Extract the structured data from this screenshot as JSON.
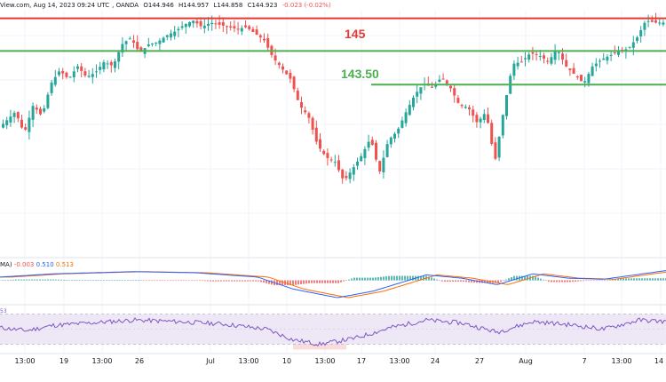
{
  "header": {
    "source": "View.com, Aug 14, 2023 09:24 UTC",
    "broker": ", OANDA",
    "open": "O144.946",
    "high": "H144.957",
    "low": "L144.858",
    "close": "C144.923",
    "change": "-0.023 (-0.02%)"
  },
  "macd_header": {
    "name": "MA)",
    "hist": "-0.003",
    "macd": "0.510",
    "signal": "0.513"
  },
  "rsi_header": {
    "name": "53"
  },
  "colors": {
    "up": "#26a69a",
    "down": "#ef5350",
    "resistance": "#e53935",
    "support": "#4caf50",
    "macd_line": "#2962ff",
    "signal_line": "#ff6d00",
    "rsi_line": "#7e57c2",
    "rsi_band": "#ede7f6"
  },
  "chart_data": {
    "type": "candlestick",
    "levels": [
      {
        "label": "145",
        "value": 145.0
      },
      {
        "label": "143.50",
        "value": 143.5
      },
      {
        "label": "",
        "value": 141.95
      }
    ],
    "ylim": [
      134.0,
      145.35
    ],
    "xticks": [
      "13:00",
      "19",
      "13:00",
      "26",
      "Jul",
      "13:00",
      "10",
      "13:00",
      "17",
      "13:00",
      "24",
      "27",
      "Aug",
      "7",
      "13:00",
      "14"
    ],
    "price_path": [
      [
        0,
        139.9
      ],
      [
        10,
        140.3
      ],
      [
        20,
        140.7
      ],
      [
        30,
        139.7
      ],
      [
        40,
        141.0
      ],
      [
        50,
        140.5
      ],
      [
        60,
        142.0
      ],
      [
        70,
        142.6
      ],
      [
        80,
        142.2
      ],
      [
        90,
        142.8
      ],
      [
        100,
        142.3
      ],
      [
        110,
        142.5
      ],
      [
        120,
        143.0
      ],
      [
        130,
        142.8
      ],
      [
        140,
        143.8
      ],
      [
        150,
        144.1
      ],
      [
        160,
        143.4
      ],
      [
        170,
        143.8
      ],
      [
        180,
        143.9
      ],
      [
        190,
        144.2
      ],
      [
        200,
        144.4
      ],
      [
        210,
        144.7
      ],
      [
        220,
        144.9
      ],
      [
        230,
        144.6
      ],
      [
        240,
        144.8
      ],
      [
        250,
        144.7
      ],
      [
        260,
        144.6
      ],
      [
        270,
        144.5
      ],
      [
        280,
        144.6
      ],
      [
        290,
        144.3
      ],
      [
        300,
        144.0
      ],
      [
        310,
        143.2
      ],
      [
        320,
        142.7
      ],
      [
        330,
        142.2
      ],
      [
        340,
        141.0
      ],
      [
        350,
        140.5
      ],
      [
        360,
        139.2
      ],
      [
        370,
        138.6
      ],
      [
        380,
        138.4
      ],
      [
        390,
        137.5
      ],
      [
        400,
        138.1
      ],
      [
        410,
        138.7
      ],
      [
        420,
        139.5
      ],
      [
        430,
        137.9
      ],
      [
        440,
        139.4
      ],
      [
        450,
        139.8
      ],
      [
        460,
        140.7
      ],
      [
        470,
        141.5
      ],
      [
        480,
        142.0
      ],
      [
        490,
        141.8
      ],
      [
        500,
        142.3
      ],
      [
        510,
        141.8
      ],
      [
        520,
        141.0
      ],
      [
        530,
        140.9
      ],
      [
        540,
        140.2
      ],
      [
        550,
        140.7
      ],
      [
        560,
        138.4
      ],
      [
        570,
        140.8
      ],
      [
        580,
        142.9
      ],
      [
        590,
        143.0
      ],
      [
        600,
        143.4
      ],
      [
        610,
        143.3
      ],
      [
        620,
        143.0
      ],
      [
        630,
        143.6
      ],
      [
        640,
        142.8
      ],
      [
        650,
        142.4
      ],
      [
        660,
        142.0
      ],
      [
        670,
        142.8
      ],
      [
        680,
        143.1
      ],
      [
        690,
        143.3
      ],
      [
        700,
        143.5
      ],
      [
        710,
        143.6
      ],
      [
        720,
        144.1
      ],
      [
        730,
        144.9
      ],
      [
        740,
        144.8
      ],
      [
        750,
        144.8
      ]
    ],
    "macd_path": [
      [
        0,
        0.15
      ],
      [
        60,
        0.3
      ],
      [
        150,
        0.4
      ],
      [
        220,
        0.35
      ],
      [
        290,
        0.15
      ],
      [
        330,
        -0.4
      ],
      [
        380,
        -0.8
      ],
      [
        420,
        -0.5
      ],
      [
        480,
        0.25
      ],
      [
        520,
        0.1
      ],
      [
        560,
        -0.2
      ],
      [
        600,
        0.3
      ],
      [
        640,
        0.1
      ],
      [
        680,
        0.05
      ],
      [
        750,
        0.45
      ]
    ],
    "rsi_path": [
      [
        0,
        52
      ],
      [
        30,
        48
      ],
      [
        60,
        55
      ],
      [
        100,
        58
      ],
      [
        150,
        62
      ],
      [
        200,
        60
      ],
      [
        250,
        57
      ],
      [
        300,
        50
      ],
      [
        330,
        36
      ],
      [
        360,
        30
      ],
      [
        400,
        38
      ],
      [
        440,
        52
      ],
      [
        480,
        62
      ],
      [
        520,
        58
      ],
      [
        560,
        46
      ],
      [
        600,
        60
      ],
      [
        640,
        56
      ],
      [
        680,
        50
      ],
      [
        720,
        62
      ],
      [
        750,
        60
      ]
    ]
  }
}
